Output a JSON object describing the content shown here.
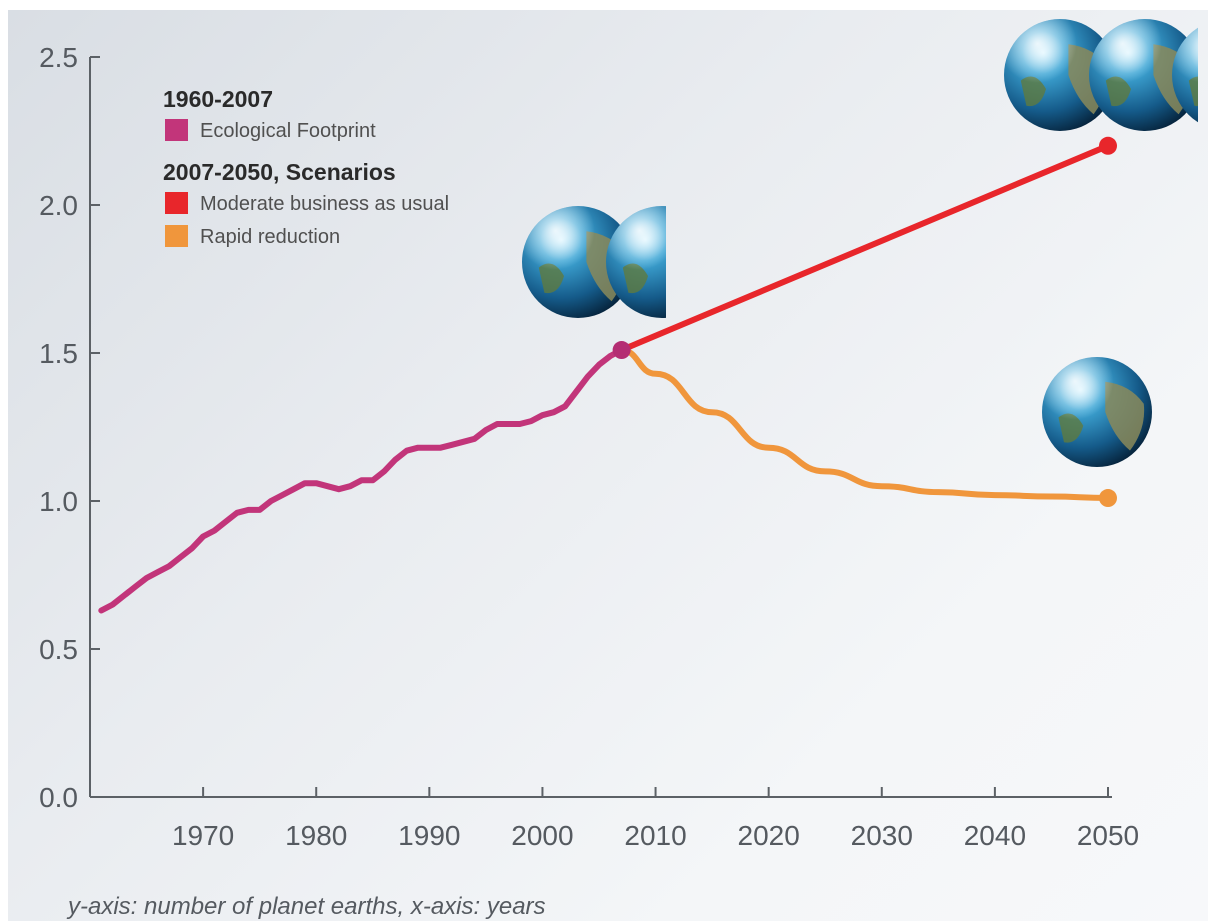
{
  "chart_data": {
    "type": "line",
    "caption": "y-axis: number of planet earths, x-axis: years",
    "legend": {
      "placement": "top-left",
      "groups": [
        {
          "heading": "1960-2007",
          "items": [
            {
              "label": "Ecological Footprint",
              "color": "#c2357a"
            }
          ]
        },
        {
          "heading": "2007-2050, Scenarios",
          "items": [
            {
              "label": "Moderate business as usual",
              "color": "#e8262b"
            },
            {
              "label": "Rapid reduction",
              "color": "#f0963c"
            }
          ]
        }
      ]
    },
    "xlim": [
      1960,
      2050
    ],
    "ylim": [
      0,
      2.5
    ],
    "x_ticks": [
      1970,
      1980,
      1990,
      2000,
      2010,
      2020,
      2030,
      2040,
      2050
    ],
    "y_ticks": [
      "0.0",
      "0.5",
      "1.0",
      "1.5",
      "2.0",
      "2.5"
    ],
    "grid": false,
    "series": [
      {
        "name": "Ecological Footprint",
        "color": "#c2357a",
        "x": [
          1961,
          1962,
          1963,
          1964,
          1965,
          1966,
          1967,
          1968,
          1969,
          1970,
          1971,
          1972,
          1973,
          1974,
          1975,
          1976,
          1977,
          1978,
          1979,
          1980,
          1981,
          1982,
          1983,
          1984,
          1985,
          1986,
          1987,
          1988,
          1989,
          1990,
          1991,
          1992,
          1993,
          1994,
          1995,
          1996,
          1997,
          1998,
          1999,
          2000,
          2001,
          2002,
          2003,
          2004,
          2005,
          2006,
          2007
        ],
        "values": [
          0.63,
          0.65,
          0.68,
          0.71,
          0.74,
          0.76,
          0.78,
          0.81,
          0.84,
          0.88,
          0.9,
          0.93,
          0.96,
          0.97,
          0.97,
          1.0,
          1.02,
          1.04,
          1.06,
          1.06,
          1.05,
          1.04,
          1.05,
          1.07,
          1.07,
          1.1,
          1.14,
          1.17,
          1.18,
          1.18,
          1.18,
          1.19,
          1.2,
          1.21,
          1.24,
          1.26,
          1.26,
          1.26,
          1.27,
          1.29,
          1.3,
          1.32,
          1.37,
          1.42,
          1.46,
          1.49,
          1.51
        ]
      },
      {
        "name": "Moderate business as usual",
        "color": "#e8262b",
        "x": [
          2007,
          2050
        ],
        "values": [
          1.51,
          2.2
        ]
      },
      {
        "name": "Rapid reduction",
        "color": "#f0963c",
        "x": [
          2007,
          2010,
          2015,
          2020,
          2025,
          2030,
          2035,
          2040,
          2045,
          2050
        ],
        "values": [
          1.51,
          1.43,
          1.3,
          1.18,
          1.1,
          1.05,
          1.03,
          1.02,
          1.015,
          1.01
        ]
      }
    ],
    "markers": [
      {
        "x": 2007,
        "y": 1.51,
        "color": "#b42d73"
      },
      {
        "x": 2050,
        "y": 2.2,
        "color": "#e8262b"
      },
      {
        "x": 2050,
        "y": 1.01,
        "color": "#f0963c"
      }
    ],
    "earth_icons": [
      {
        "label": "earth-icon",
        "count": 1.5,
        "near_year": 2007
      },
      {
        "label": "earth-icon",
        "count": 2.2,
        "near_year": 2050
      },
      {
        "label": "earth-icon",
        "count": 1,
        "near_year": 2050
      }
    ]
  }
}
